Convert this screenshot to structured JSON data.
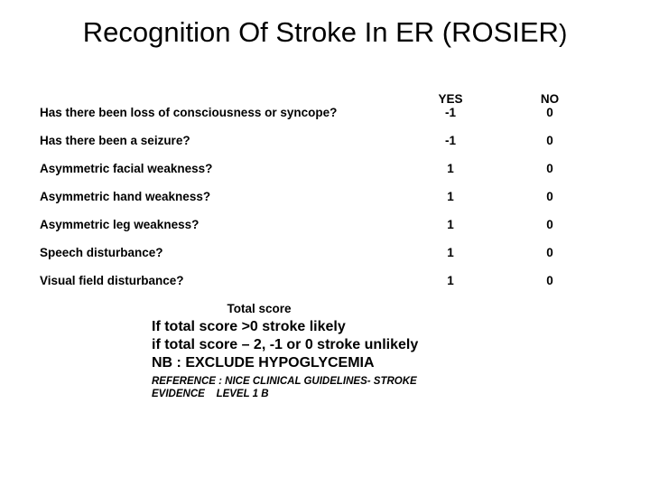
{
  "title_main": "Recognition Of Stroke In ER (ROSIER",
  "title_close": ")",
  "header": {
    "yes": "YES",
    "no": "NO"
  },
  "rows": [
    {
      "question": "Has there been loss of consciousness or syncope?",
      "yes": "-1",
      "no": "0"
    },
    {
      "question": "Has there been a seizure?",
      "yes": "-1",
      "no": "0"
    },
    {
      "question": "Asymmetric facial weakness?",
      "yes": "1",
      "no": "0"
    },
    {
      "question": "Asymmetric hand weakness?",
      "yes": "1",
      "no": "0"
    },
    {
      "question": "Asymmetric leg weakness?",
      "yes": "1",
      "no": "0"
    },
    {
      "question": "Speech disturbance?",
      "yes": "1",
      "no": "0"
    },
    {
      "question": "Visual field disturbance?",
      "yes": "1",
      "no": "0"
    }
  ],
  "total_label": "Total score",
  "interp_line1": "If total score >0 stroke likely",
  "interp_line2": "if total score – 2, -1 or 0 stroke unlikely",
  "interp_line3": "NB : EXCLUDE HYPOGLYCEMIA",
  "ref_line1": "REFERENCE : NICE CLINICAL GUIDELINES- STROKE",
  "ref_line2": "EVIDENCE    LEVEL 1 B"
}
